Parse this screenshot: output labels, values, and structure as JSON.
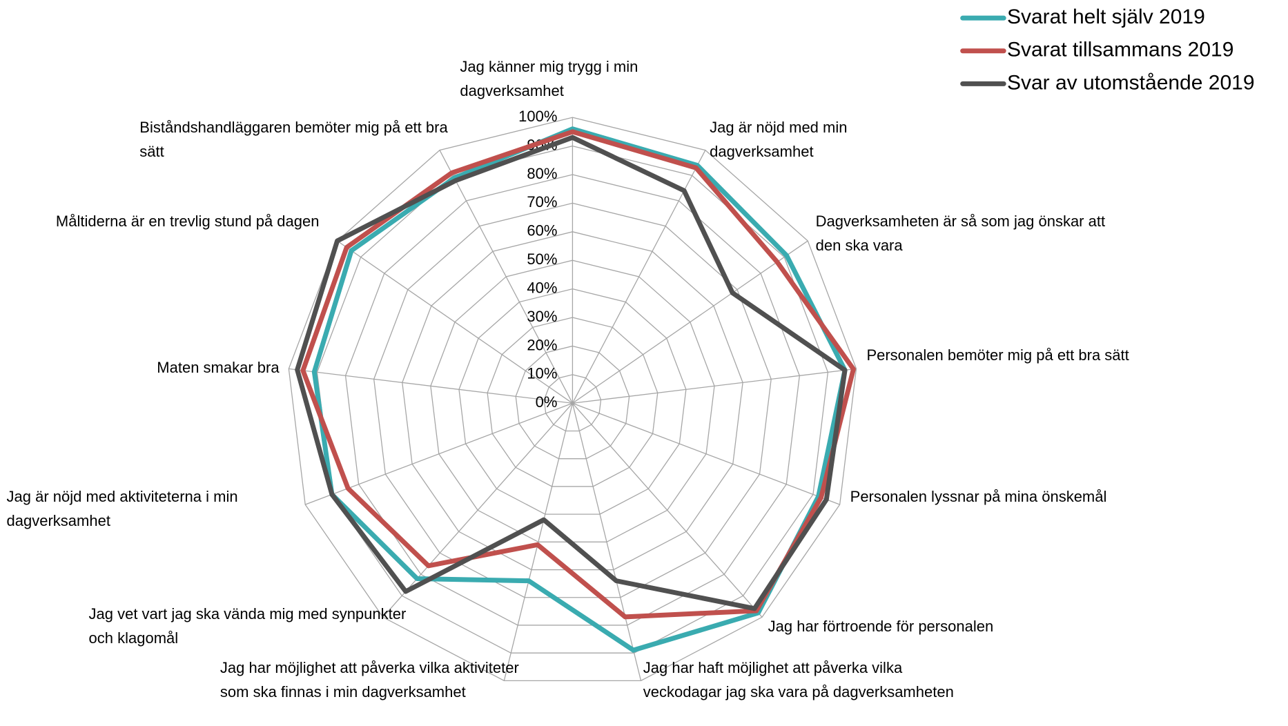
{
  "chart_data": {
    "type": "radar",
    "categories": [
      "Jag känner mig trygg i min dagverksamhet",
      "Jag är nöjd med min dagverksamhet",
      "Dagverksamheten är så som jag önskar att den ska vara",
      "Personalen bemöter mig på ett bra sätt",
      "Personalen lyssnar på mina önskemål",
      "Jag har förtroende för personalen",
      "Jag har haft möjlighet att påverka vilka veckodagar jag ska vara på dagverksamheten",
      "Jag har möjlighet att påverka vilka aktiviteter som ska finnas i min dagverksamhet",
      "Jag vet vart jag ska vända mig med synpunkter och klagomål",
      "Jag är nöjd med aktiviteterna i min dagverksamhet",
      "Maten smakar bra",
      "Måltiderna är en trevlig stund på dagen",
      "Biståndshandläggaren bemöter mig på ett bra sätt"
    ],
    "series": [
      {
        "name": "Svarat helt själv 2019",
        "color": "#3aabb0",
        "values": [
          96,
          94,
          91,
          96,
          92,
          98,
          89,
          64,
          82,
          90,
          91,
          94,
          89
        ]
      },
      {
        "name": "Svarat tillsammans 2019",
        "color": "#c0504d",
        "values": [
          95,
          93,
          87,
          99,
          93,
          97,
          77,
          51,
          76,
          84,
          95,
          96,
          91
        ]
      },
      {
        "name": "Svar av utomstående 2019",
        "color": "#505050",
        "values": [
          93,
          84,
          68,
          96,
          95,
          96,
          64,
          42,
          88,
          90,
          97,
          100,
          88
        ]
      }
    ],
    "ylim": [
      0,
      100
    ],
    "yticks": [
      {
        "value": 0,
        "label": "0%"
      },
      {
        "value": 10,
        "label": "10%"
      },
      {
        "value": 20,
        "label": "20%"
      },
      {
        "value": 30,
        "label": "30%"
      },
      {
        "value": 40,
        "label": "40%"
      },
      {
        "value": 50,
        "label": "50%"
      },
      {
        "value": 60,
        "label": "60%"
      },
      {
        "value": 70,
        "label": "70%"
      },
      {
        "value": 80,
        "label": "80%"
      },
      {
        "value": 90,
        "label": "90%"
      },
      {
        "value": 100,
        "label": "100%"
      }
    ],
    "grid": true,
    "legend": "top-right"
  }
}
